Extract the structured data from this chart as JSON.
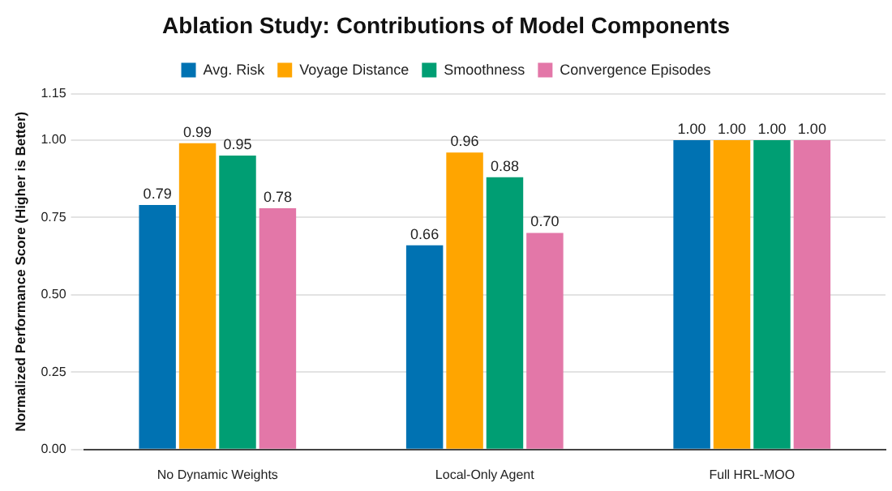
{
  "chart_data": {
    "type": "bar",
    "title": "Ablation Study: Contributions of Model Components",
    "ylabel": "Normalized Performance Score (Higher is Better)",
    "categories": [
      "No Dynamic Weights",
      "Local-Only Agent",
      "Full HRL-MOO"
    ],
    "series": [
      {
        "name": "Avg. Risk",
        "color": "#0072b2",
        "values": [
          0.79,
          0.66,
          1.0
        ],
        "value_labels": [
          "0.79",
          "0.66",
          "1.00"
        ]
      },
      {
        "name": "Voyage Distance",
        "color": "#ffa500",
        "values": [
          0.99,
          0.96,
          1.0
        ],
        "value_labels": [
          "0.99",
          "0.96",
          "1.00"
        ]
      },
      {
        "name": "Smoothness",
        "color": "#009e73",
        "values": [
          0.95,
          0.88,
          1.0
        ],
        "value_labels": [
          "0.95",
          "0.88",
          "1.00"
        ]
      },
      {
        "name": "Convergence Episodes",
        "color": "#e377a8",
        "values": [
          0.78,
          0.7,
          1.0
        ],
        "value_labels": [
          "0.78",
          "0.70",
          "1.00"
        ]
      }
    ],
    "ylim": [
      0,
      1.15
    ],
    "yticks": [
      {
        "value": 0,
        "label": "0.00"
      },
      {
        "value": 0.25,
        "label": "0.25"
      },
      {
        "value": 0.5,
        "label": "0.50"
      },
      {
        "value": 0.75,
        "label": "0.75"
      },
      {
        "value": 1,
        "label": "1.00"
      },
      {
        "value": 1.15,
        "label": "1.15"
      }
    ],
    "grid": "y",
    "legend": "top"
  }
}
